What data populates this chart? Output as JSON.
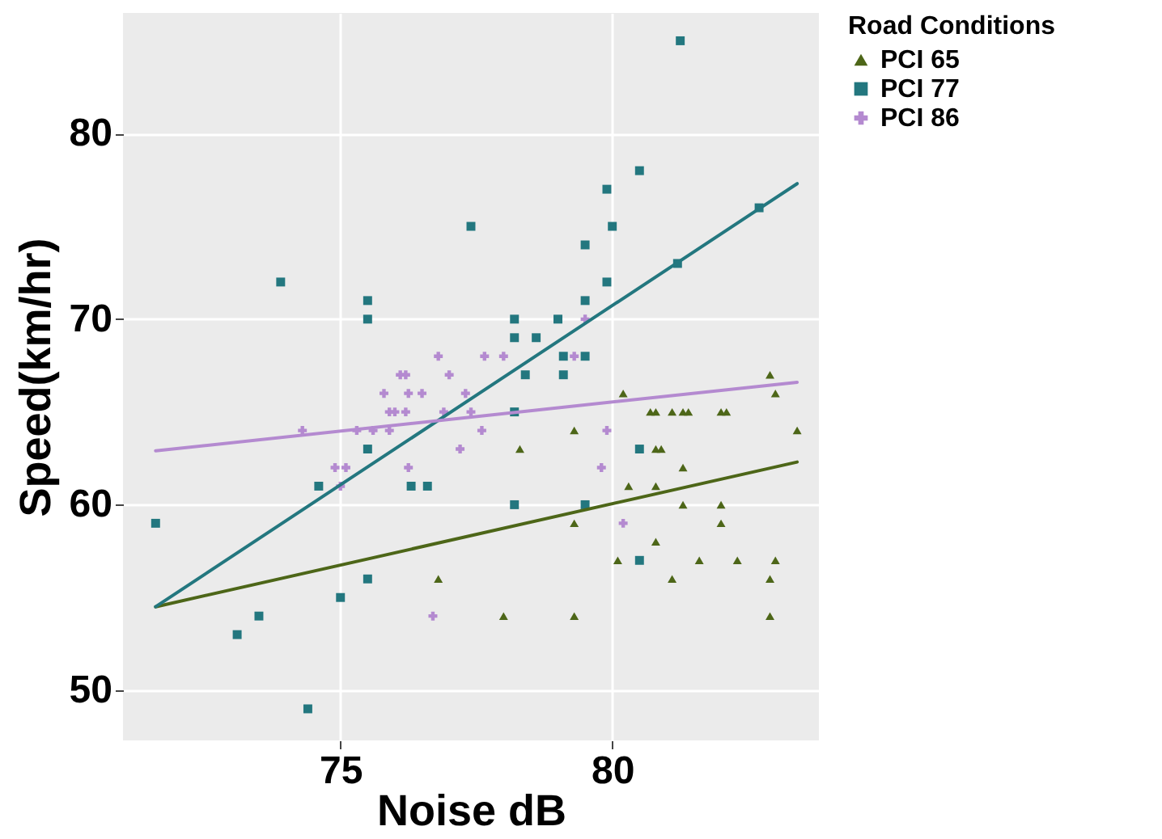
{
  "chart_data": {
    "type": "scatter",
    "xlabel": "Noise dB",
    "ylabel": "Speed(km/hr)",
    "legend_title": "Road Conditions",
    "legend": "right",
    "grid": true,
    "xlim": [
      71.0,
      83.8
    ],
    "ylim": [
      47.3,
      86.5
    ],
    "xticks": [
      75,
      80
    ],
    "yticks": [
      50,
      60,
      70,
      80
    ],
    "series": [
      {
        "name": "PCI 65",
        "marker": "triangle",
        "color": "#4d6618",
        "x": [
          80.2,
          82.9,
          83.0,
          80.7,
          80.8,
          81.1,
          81.3,
          81.4,
          82.0,
          82.1,
          79.3,
          83.4,
          78.3,
          80.8,
          80.9,
          81.3,
          80.3,
          80.8,
          81.3,
          82.0,
          79.3,
          82.0,
          80.8,
          80.1,
          81.6,
          82.3,
          83.0,
          81.1,
          82.9,
          78.0,
          79.3,
          82.9,
          76.8
        ],
        "values": [
          66,
          67,
          66,
          65,
          65,
          65,
          65,
          65,
          65,
          65,
          64,
          64,
          63,
          63,
          63,
          62,
          61,
          61,
          60,
          60,
          59,
          59,
          58,
          57,
          57,
          57,
          57,
          56,
          56,
          54,
          54,
          54,
          56
        ]
      },
      {
        "name": "PCI 77",
        "marker": "square",
        "color": "#23777f",
        "x": [
          71.6,
          73.1,
          73.5,
          73.9,
          74.4,
          75.0,
          74.6,
          75.5,
          75.5,
          75.5,
          75.5,
          76.3,
          76.6,
          77.4,
          81.25,
          80.5,
          79.9,
          80.0,
          79.5,
          79.9,
          79.5,
          81.2,
          82.7,
          78.2,
          79.0,
          78.2,
          78.6,
          79.1,
          79.5,
          78.4,
          79.1,
          78.2,
          80.5,
          78.2,
          79.5,
          80.5
        ],
        "values": [
          59,
          53,
          54,
          72,
          49,
          55,
          61,
          56,
          71,
          70,
          63,
          61,
          61,
          75,
          85,
          78,
          77,
          75,
          74,
          72,
          71,
          73,
          76,
          70,
          70,
          69,
          69,
          68,
          68,
          67,
          67,
          65,
          63,
          60,
          60,
          57
        ]
      },
      {
        "name": "PCI 86",
        "marker": "cross",
        "color": "#b48ad0",
        "x": [
          76.8,
          76.1,
          76.2,
          77.0,
          75.8,
          76.25,
          76.5,
          77.3,
          75.9,
          76.0,
          76.2,
          76.9,
          74.3,
          75.3,
          75.6,
          75.9,
          77.2,
          74.9,
          75.1,
          76.25,
          75.0,
          76.7,
          77.65,
          78.0,
          79.5,
          79.3,
          77.4,
          77.6,
          79.8,
          80.2,
          79.9
        ],
        "values": [
          68,
          67,
          67,
          67,
          66,
          66,
          66,
          66,
          65,
          65,
          65,
          65,
          64,
          64,
          64,
          64,
          63,
          62,
          62,
          62,
          61,
          54,
          68,
          68,
          70,
          68,
          65,
          64,
          62,
          59,
          64
        ]
      },
      {
        "type": "line",
        "color": "#4d6618",
        "x": [
          71.6,
          83.4
        ],
        "values": [
          54.5,
          62.3
        ]
      },
      {
        "type": "line",
        "color": "#23777f",
        "x": [
          71.6,
          83.4
        ],
        "values": [
          54.5,
          77.3
        ]
      },
      {
        "type": "line",
        "color": "#b48ad0",
        "x": [
          71.6,
          83.4
        ],
        "values": [
          62.9,
          66.6
        ]
      }
    ]
  }
}
